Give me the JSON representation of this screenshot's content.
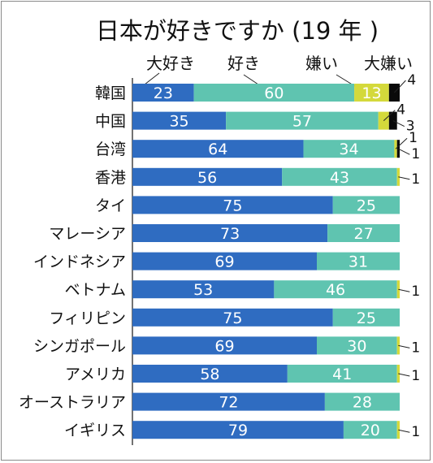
{
  "chart_data": {
    "type": "bar",
    "stacked": true,
    "orientation": "horizontal",
    "title": "日本が好きですか (19 年 )",
    "categories": [
      "韓国",
      "中国",
      "台湾",
      "香港",
      "タイ",
      "マレーシア",
      "インドネシア",
      "ベトナム",
      "フィリピン",
      "シンガポール",
      "アメリカ",
      "オーストラリア",
      "イギリス"
    ],
    "series": [
      {
        "name": "大好き",
        "color": "#2f6cc1",
        "values": [
          23,
          35,
          64,
          56,
          75,
          73,
          69,
          53,
          75,
          69,
          58,
          72,
          79
        ]
      },
      {
        "name": "好き",
        "color": "#5fc4b0",
        "values": [
          60,
          57,
          34,
          43,
          25,
          27,
          31,
          46,
          25,
          30,
          41,
          28,
          20
        ]
      },
      {
        "name": "嫌い",
        "color": "#d4d93b",
        "values": [
          13,
          4,
          1,
          1,
          0,
          0,
          0,
          1,
          0,
          1,
          1,
          0,
          1
        ]
      },
      {
        "name": "大嫌い",
        "color": "#0a0a0a",
        "values": [
          4,
          3,
          1,
          0,
          0,
          0,
          0,
          0,
          0,
          0,
          0,
          0,
          0
        ]
      }
    ],
    "value_labels": [
      [
        "23",
        "60",
        "13",
        "4"
      ],
      [
        "35",
        "57",
        "4",
        "3"
      ],
      [
        "64",
        "34",
        "1",
        "1"
      ],
      [
        "56",
        "43",
        "1",
        ""
      ],
      [
        "75",
        "25",
        "",
        ""
      ],
      [
        "73",
        "27",
        "",
        ""
      ],
      [
        "69",
        "31",
        "",
        ""
      ],
      [
        "53",
        "46",
        "1",
        ""
      ],
      [
        "75",
        "25",
        "",
        ""
      ],
      [
        "69",
        "30",
        "1",
        ""
      ],
      [
        "58",
        "41",
        "1",
        ""
      ],
      [
        "72",
        "28",
        "",
        ""
      ],
      [
        "79",
        "20",
        "1",
        ""
      ]
    ],
    "xlim": [
      0,
      100
    ],
    "legend_position": "top",
    "grid": false
  }
}
